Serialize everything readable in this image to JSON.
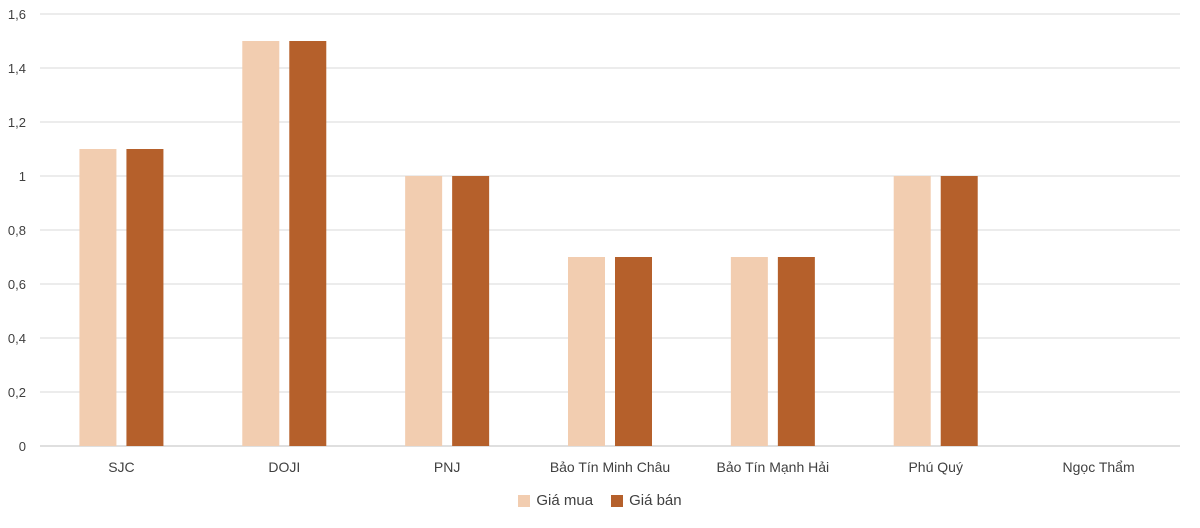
{
  "chart_data": {
    "type": "bar",
    "categories": [
      "SJC",
      "DOJI",
      "PNJ",
      "Bảo Tín Minh Châu",
      "Bảo Tín Mạnh Hải",
      "Phú Quý",
      "Ngọc Thẩm"
    ],
    "series": [
      {
        "name": "Giá mua",
        "color": "#f2cdb0",
        "values": [
          1.1,
          1.5,
          1.0,
          0.7,
          0.7,
          1.0,
          0
        ]
      },
      {
        "name": "Giá bán",
        "color": "#b5602b",
        "values": [
          1.1,
          1.5,
          1.0,
          0.7,
          0.7,
          1.0,
          0
        ]
      }
    ],
    "ylim": [
      0,
      1.6
    ],
    "yticks": [
      "0",
      "0,2",
      "0,4",
      "0,6",
      "0,8",
      "1",
      "1,2",
      "1,4",
      "1,6"
    ],
    "grid": true,
    "legend_position": "bottom"
  }
}
